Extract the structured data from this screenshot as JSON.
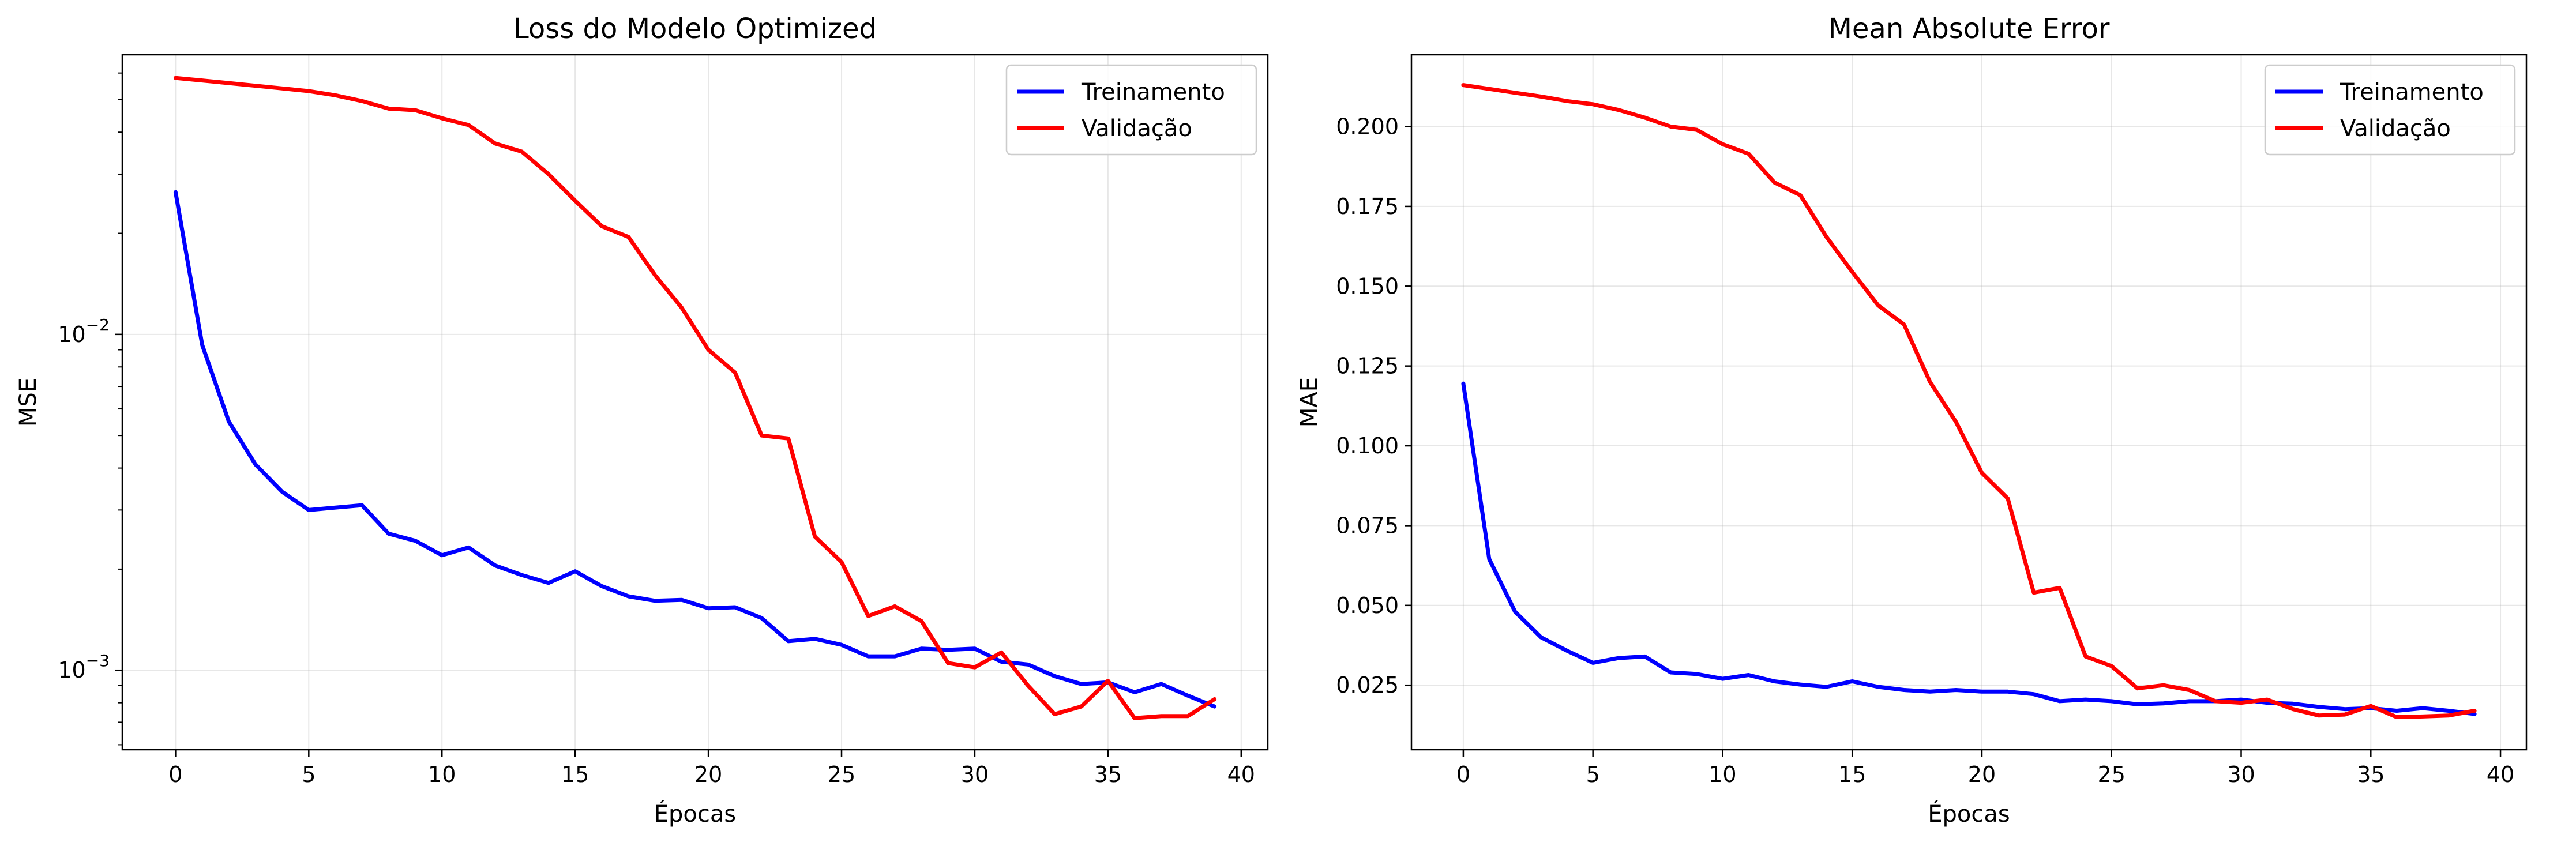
{
  "chart_data": [
    {
      "type": "line",
      "title": "Loss do Modelo Optimized",
      "xlabel": "Épocas",
      "ylabel": "MSE",
      "yscale": "log",
      "xlim": [
        -2,
        41
      ],
      "ylim": [
        0.00058,
        0.068
      ],
      "grid": true,
      "legend": "top-right",
      "x_ticks": [
        0,
        5,
        10,
        15,
        20,
        25,
        30,
        35,
        40
      ],
      "y_ticks": [
        {
          "value": 0.01,
          "base": "10",
          "exp": "−2"
        },
        {
          "value": 0.001,
          "base": "10",
          "exp": "−3"
        }
      ],
      "x": [
        0,
        1,
        2,
        3,
        4,
        5,
        6,
        7,
        8,
        9,
        10,
        11,
        12,
        13,
        14,
        15,
        16,
        17,
        18,
        19,
        20,
        21,
        22,
        23,
        24,
        25,
        26,
        27,
        28,
        29,
        30,
        31,
        32,
        33,
        34,
        35,
        36,
        37,
        38,
        39
      ],
      "series": [
        {
          "name": "Treinamento",
          "color": "#0000ff",
          "values": [
            0.0265,
            0.0093,
            0.0055,
            0.0041,
            0.0034,
            0.003,
            0.00305,
            0.0031,
            0.00255,
            0.00243,
            0.0022,
            0.00232,
            0.00205,
            0.00192,
            0.00182,
            0.00197,
            0.00178,
            0.00166,
            0.00161,
            0.00162,
            0.00153,
            0.00154,
            0.00143,
            0.00122,
            0.00124,
            0.00119,
            0.0011,
            0.0011,
            0.00116,
            0.00115,
            0.00116,
            0.00106,
            0.00104,
            0.00096,
            0.00091,
            0.00092,
            0.00086,
            0.00091,
            0.00084,
            0.00078
          ]
        },
        {
          "name": "Validação",
          "color": "#ff0000",
          "values": [
            0.058,
            0.057,
            0.056,
            0.055,
            0.054,
            0.053,
            0.0515,
            0.0495,
            0.047,
            0.0465,
            0.044,
            0.042,
            0.037,
            0.035,
            0.03,
            0.025,
            0.021,
            0.0195,
            0.015,
            0.012,
            0.009,
            0.0077,
            0.005,
            0.0049,
            0.0025,
            0.0021,
            0.00145,
            0.00155,
            0.0014,
            0.00105,
            0.00102,
            0.00113,
            0.0009,
            0.00074,
            0.00078,
            0.00093,
            0.00072,
            0.00073,
            0.00073,
            0.00082
          ]
        }
      ]
    },
    {
      "type": "line",
      "title": "Mean Absolute Error",
      "xlabel": "Épocas",
      "ylabel": "MAE",
      "yscale": "linear",
      "xlim": [
        -2,
        41
      ],
      "ylim": [
        0.0048,
        0.2225
      ],
      "grid": true,
      "legend": "top-right",
      "x_ticks": [
        0,
        5,
        10,
        15,
        20,
        25,
        30,
        35,
        40
      ],
      "y_ticks": [
        {
          "value": 0.025,
          "label": "0.025"
        },
        {
          "value": 0.05,
          "label": "0.050"
        },
        {
          "value": 0.075,
          "label": "0.075"
        },
        {
          "value": 0.1,
          "label": "0.100"
        },
        {
          "value": 0.125,
          "label": "0.125"
        },
        {
          "value": 0.15,
          "label": "0.150"
        },
        {
          "value": 0.175,
          "label": "0.175"
        },
        {
          "value": 0.2,
          "label": "0.200"
        }
      ],
      "x": [
        0,
        1,
        2,
        3,
        4,
        5,
        6,
        7,
        8,
        9,
        10,
        11,
        12,
        13,
        14,
        15,
        16,
        17,
        18,
        19,
        20,
        21,
        22,
        23,
        24,
        25,
        26,
        27,
        28,
        29,
        30,
        31,
        32,
        33,
        34,
        35,
        36,
        37,
        38,
        39
      ],
      "series": [
        {
          "name": "Treinamento",
          "color": "#0000ff",
          "values": [
            0.1195,
            0.0645,
            0.048,
            0.04,
            0.0358,
            0.032,
            0.0335,
            0.034,
            0.029,
            0.0285,
            0.027,
            0.0282,
            0.0262,
            0.0252,
            0.0245,
            0.0262,
            0.0245,
            0.0235,
            0.023,
            0.0235,
            0.023,
            0.023,
            0.0222,
            0.02,
            0.0205,
            0.02,
            0.019,
            0.0193,
            0.02,
            0.02,
            0.0205,
            0.0195,
            0.0192,
            0.0182,
            0.0175,
            0.0178,
            0.017,
            0.0178,
            0.017,
            0.016
          ]
        },
        {
          "name": "Validação",
          "color": "#ff0000",
          "values": [
            0.213,
            0.2118,
            0.2106,
            0.2094,
            0.208,
            0.207,
            0.2052,
            0.2028,
            0.2,
            0.199,
            0.1945,
            0.1915,
            0.1825,
            0.1785,
            0.1655,
            0.1545,
            0.144,
            0.138,
            0.12,
            0.1075,
            0.0915,
            0.0835,
            0.054,
            0.0555,
            0.034,
            0.031,
            0.024,
            0.025,
            0.0235,
            0.02,
            0.0195,
            0.0205,
            0.0175,
            0.0155,
            0.0158,
            0.0185,
            0.015,
            0.0152,
            0.0155,
            0.017
          ]
        }
      ]
    }
  ]
}
